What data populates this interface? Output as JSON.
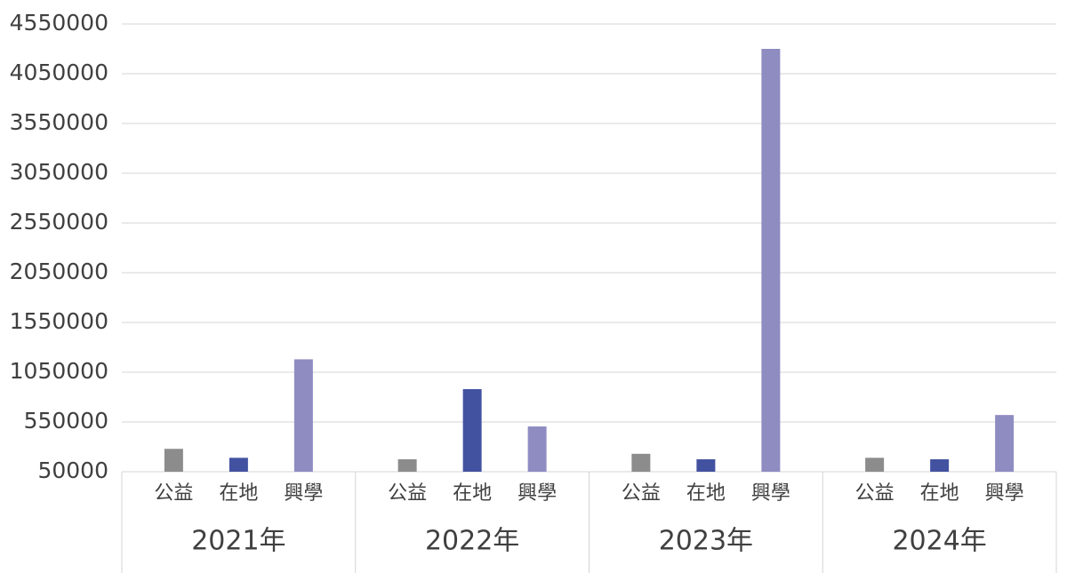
{
  "chart_data": {
    "type": "bar",
    "categories": [
      "2021年",
      "2022年",
      "2023年",
      "2024年"
    ],
    "series": [
      {
        "name": "公益",
        "color": "#8c8c8c",
        "values": [
          280000,
          175000,
          230000,
          190000
        ]
      },
      {
        "name": "在地",
        "color": "#4352a0",
        "values": [
          190000,
          880000,
          175000,
          175000
        ]
      },
      {
        "name": "興學",
        "color": "#8f8cc2",
        "values": [
          1180000,
          505000,
          4300000,
          620000
        ]
      }
    ],
    "ylim": [
      50000,
      4550000
    ],
    "yticks": [
      50000,
      550000,
      1050000,
      1550000,
      2050000,
      2550000,
      3050000,
      3550000,
      4050000,
      4550000
    ],
    "grid": true
  }
}
